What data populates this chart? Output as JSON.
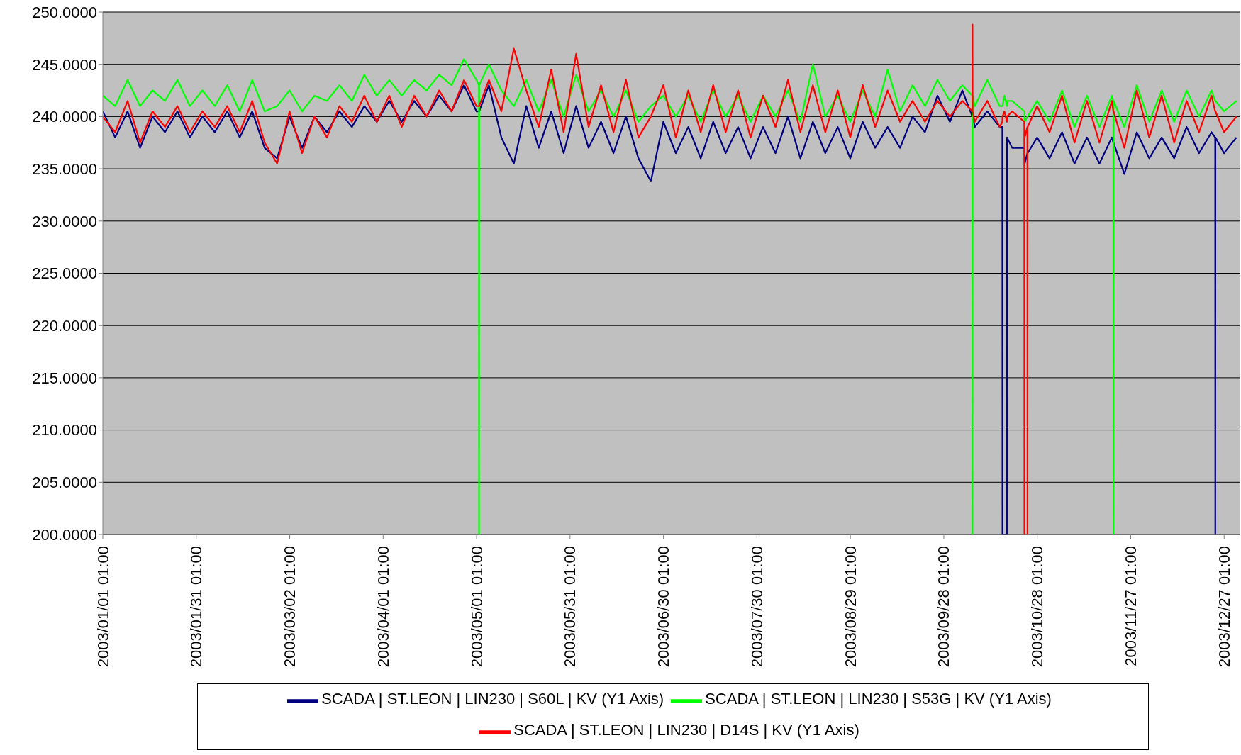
{
  "chart_data": {
    "type": "line",
    "x": [
      "2003-01-01T01:00",
      "2003-01-05",
      "2003-01-09",
      "2003-01-13",
      "2003-01-17",
      "2003-01-21",
      "2003-01-25",
      "2003-01-29",
      "2003-02-02",
      "2003-02-06",
      "2003-02-10",
      "2003-02-14",
      "2003-02-18",
      "2003-02-22",
      "2003-02-26",
      "2003-03-02",
      "2003-03-06",
      "2003-03-10",
      "2003-03-14",
      "2003-03-18",
      "2003-03-22",
      "2003-03-26",
      "2003-03-30",
      "2003-04-03",
      "2003-04-07",
      "2003-04-11",
      "2003-04-15",
      "2003-04-19",
      "2003-04-23",
      "2003-04-27",
      "2003-05-01",
      "2003-05-01T19:00",
      "2003-05-01T20:00",
      "2003-05-01T21:00",
      "2003-05-05",
      "2003-05-09",
      "2003-05-13",
      "2003-05-17",
      "2003-05-21",
      "2003-05-25",
      "2003-05-29",
      "2003-06-02",
      "2003-06-06",
      "2003-06-10",
      "2003-06-14",
      "2003-06-18",
      "2003-06-22",
      "2003-06-26",
      "2003-06-30",
      "2003-07-04",
      "2003-07-08",
      "2003-07-12",
      "2003-07-16",
      "2003-07-20",
      "2003-07-24",
      "2003-07-28",
      "2003-08-01",
      "2003-08-05",
      "2003-08-09",
      "2003-08-13",
      "2003-08-17",
      "2003-08-21",
      "2003-08-25",
      "2003-08-29",
      "2003-09-02",
      "2003-09-06",
      "2003-09-10",
      "2003-09-14",
      "2003-09-18",
      "2003-09-22",
      "2003-09-26",
      "2003-09-30",
      "2003-10-04",
      "2003-10-07T05:00",
      "2003-10-07T06:00",
      "2003-10-07T07:00",
      "2003-10-08",
      "2003-10-12",
      "2003-10-16",
      "2003-10-16T20:00",
      "2003-10-16T21:00",
      "2003-10-17T12:00",
      "2003-10-18T07:00",
      "2003-10-18T08:00",
      "2003-10-20",
      "2003-10-23T21:00",
      "2003-10-23T22:00",
      "2003-10-23T23:00",
      "2003-10-24",
      "2003-10-24T21:00",
      "2003-10-24T22:00",
      "2003-10-24T23:00",
      "2003-10-28",
      "2003-11-01",
      "2003-11-05",
      "2003-11-09",
      "2003-11-13",
      "2003-11-17",
      "2003-11-21",
      "2003-11-21T11:00",
      "2003-11-21T12:00",
      "2003-11-21T13:00",
      "2003-11-25",
      "2003-11-29",
      "2003-12-03",
      "2003-12-07",
      "2003-12-11",
      "2003-12-15",
      "2003-12-19",
      "2003-12-23",
      "2003-12-24T04:00",
      "2003-12-24T05:00",
      "2003-12-24T06:00",
      "2003-12-27",
      "2003-12-31"
    ],
    "series": [
      {
        "name": "SCADA | ST.LEON | LIN230 | S60L | KV  (Y1 Axis)",
        "color": "#000080",
        "values": [
          240.5,
          238.0,
          240.5,
          237.0,
          240.0,
          238.5,
          240.5,
          238.0,
          240.0,
          238.5,
          240.5,
          238.0,
          240.5,
          237.0,
          236.0,
          240.0,
          237.0,
          240.0,
          238.5,
          240.5,
          239.0,
          241.0,
          239.5,
          241.5,
          239.5,
          241.5,
          240.0,
          242.0,
          240.5,
          243.0,
          240.5,
          240.5,
          240.5,
          240.5,
          243.0,
          238.0,
          235.5,
          241.0,
          237.0,
          240.5,
          236.5,
          241.0,
          237.0,
          239.5,
          236.5,
          240.0,
          236.0,
          233.8,
          239.5,
          236.5,
          239.0,
          236.0,
          239.5,
          236.5,
          239.0,
          236.0,
          239.0,
          236.5,
          240.0,
          236.0,
          239.5,
          236.5,
          239.0,
          236.0,
          239.5,
          237.0,
          239.0,
          237.0,
          240.0,
          238.5,
          242.0,
          239.5,
          242.5,
          240.0,
          240.0,
          240.0,
          239.0,
          240.5,
          239.0,
          239.0,
          200.0,
          200.0,
          200.0,
          238.0,
          237.0,
          237.0,
          237.0,
          237.0,
          235.5,
          236.5,
          236.5,
          236.5,
          238.0,
          236.0,
          238.5,
          235.5,
          238.0,
          235.5,
          238.0,
          237.5,
          237.5,
          237.5,
          234.5,
          238.5,
          236.0,
          238.0,
          236.0,
          239.0,
          236.5,
          238.5,
          238.0,
          200.0,
          238.0,
          236.5,
          238.0
        ]
      },
      {
        "name": "SCADA | ST.LEON | LIN230 | S53G | KV  (Y1 Axis)",
        "color": "#00ff00",
        "values": [
          242.0,
          241.0,
          243.5,
          241.0,
          242.5,
          241.5,
          243.5,
          241.0,
          242.5,
          241.0,
          243.0,
          240.5,
          243.5,
          240.5,
          241.0,
          242.5,
          240.5,
          242.0,
          241.5,
          243.0,
          241.5,
          244.0,
          242.0,
          243.5,
          242.0,
          243.5,
          242.5,
          244.0,
          243.0,
          245.5,
          243.5,
          243.0,
          200.0,
          243.0,
          245.0,
          242.5,
          241.0,
          243.5,
          240.5,
          243.5,
          240.0,
          244.0,
          240.5,
          242.5,
          240.0,
          242.5,
          239.5,
          241.0,
          242.0,
          240.0,
          242.0,
          239.5,
          242.5,
          240.0,
          242.0,
          239.5,
          242.0,
          240.0,
          242.5,
          239.5,
          245.0,
          240.0,
          242.0,
          239.5,
          242.5,
          240.0,
          244.5,
          240.5,
          243.0,
          241.0,
          243.5,
          241.5,
          243.0,
          242.0,
          200.0,
          242.0,
          241.0,
          243.5,
          241.0,
          241.0,
          241.0,
          242.0,
          241.0,
          241.5,
          241.5,
          240.5,
          240.5,
          240.5,
          239.5,
          240.0,
          240.0,
          240.0,
          241.5,
          239.5,
          242.5,
          239.0,
          242.0,
          239.0,
          242.0,
          241.5,
          200.0,
          241.5,
          239.0,
          243.0,
          239.5,
          242.5,
          239.5,
          242.5,
          240.0,
          242.5,
          241.5,
          241.5,
          241.5,
          240.5,
          241.5
        ]
      },
      {
        "name": "SCADA | ST.LEON | LIN230 | D14S | KV  (Y1 Axis)",
        "color": "#ff0000",
        "values": [
          240.0,
          238.5,
          241.5,
          237.5,
          240.5,
          239.0,
          241.0,
          238.5,
          240.5,
          239.0,
          241.0,
          238.5,
          241.5,
          237.5,
          235.5,
          240.5,
          236.5,
          240.0,
          238.0,
          241.0,
          239.5,
          242.0,
          239.5,
          242.0,
          239.0,
          242.0,
          240.0,
          242.5,
          240.5,
          243.5,
          241.0,
          241.0,
          241.0,
          241.0,
          243.5,
          240.5,
          246.5,
          242.5,
          239.0,
          244.5,
          238.5,
          246.0,
          239.0,
          243.0,
          238.5,
          243.5,
          238.0,
          240.0,
          243.0,
          238.0,
          242.5,
          238.5,
          243.0,
          238.5,
          242.5,
          238.0,
          242.0,
          239.0,
          243.5,
          238.5,
          243.0,
          238.5,
          242.5,
          238.0,
          243.0,
          239.0,
          242.5,
          239.5,
          241.5,
          239.5,
          241.5,
          240.0,
          241.5,
          240.5,
          248.8,
          240.5,
          239.5,
          241.5,
          239.0,
          239.5,
          240.0,
          240.5,
          239.5,
          240.0,
          240.5,
          239.5,
          200.0,
          239.5,
          238.0,
          239.0,
          200.0,
          239.0,
          241.0,
          238.5,
          242.0,
          237.5,
          241.5,
          237.5,
          241.5,
          240.5,
          240.5,
          240.5,
          237.0,
          242.5,
          238.0,
          242.0,
          237.5,
          241.5,
          238.5,
          242.0,
          240.5,
          240.5,
          240.5,
          238.5,
          240.0
        ]
      }
    ],
    "xlim": [
      "2003-01-01T01:00",
      "2004-01-01T00:00"
    ],
    "xticks": [
      {
        "value": "2003-01-01T01:00",
        "label": "2003/01/01 01:00"
      },
      {
        "value": "2003-01-31T01:00",
        "label": "2003/01/31 01:00"
      },
      {
        "value": "2003-03-02T01:00",
        "label": "2003/03/02 01:00"
      },
      {
        "value": "2003-04-01T01:00",
        "label": "2003/04/01 01:00"
      },
      {
        "value": "2003-05-01T01:00",
        "label": "2003/05/01 01:00"
      },
      {
        "value": "2003-05-31T01:00",
        "label": "2003/05/31 01:00"
      },
      {
        "value": "2003-06-30T01:00",
        "label": "2003/06/30 01:00"
      },
      {
        "value": "2003-07-30T01:00",
        "label": "2003/07/30 01:00"
      },
      {
        "value": "2003-08-29T01:00",
        "label": "2003/08/29 01:00"
      },
      {
        "value": "2003-09-28T01:00",
        "label": "2003/09/28 01:00"
      },
      {
        "value": "2003-10-28T01:00",
        "label": "2003/10/28 01:00"
      },
      {
        "value": "2003-11-27T01:00",
        "label": "2003/11/27 01:00"
      },
      {
        "value": "2003-12-27T01:00",
        "label": "2003/12/27 01:00"
      }
    ],
    "ylim": [
      200,
      250
    ],
    "yticks": [
      {
        "value": 200,
        "label": "200.0000"
      },
      {
        "value": 205,
        "label": "205.0000"
      },
      {
        "value": 210,
        "label": "210.0000"
      },
      {
        "value": 215,
        "label": "215.0000"
      },
      {
        "value": 220,
        "label": "220.0000"
      },
      {
        "value": 225,
        "label": "225.0000"
      },
      {
        "value": 230,
        "label": "230.0000"
      },
      {
        "value": 235,
        "label": "235.0000"
      },
      {
        "value": 240,
        "label": "240.0000"
      },
      {
        "value": 245,
        "label": "245.0000"
      },
      {
        "value": 250,
        "label": "250.0000"
      }
    ],
    "grid": "y",
    "legend": "bottom",
    "marker": "none",
    "line_style": "solid"
  }
}
